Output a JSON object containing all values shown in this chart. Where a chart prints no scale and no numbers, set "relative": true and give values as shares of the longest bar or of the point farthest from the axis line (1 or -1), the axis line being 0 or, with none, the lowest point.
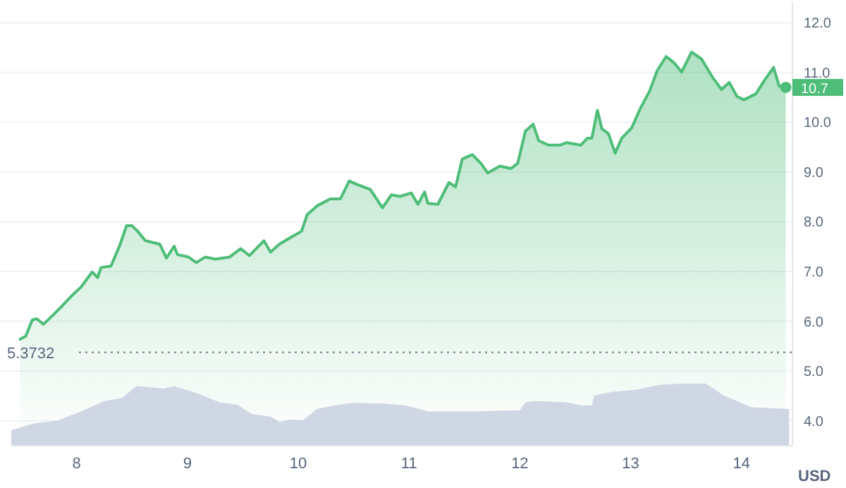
{
  "chart_data": [
    {
      "type": "area",
      "ylabel": "USD",
      "xlim": [
        7.41,
        14.46
      ],
      "xticks": [
        8,
        9,
        10,
        11,
        12,
        13,
        14
      ],
      "ylim": [
        3.5,
        12.4
      ],
      "yticks": [
        {
          "value": 4,
          "label": "4.0"
        },
        {
          "value": 5,
          "label": "5.0"
        },
        {
          "value": 6,
          "label": "6.0"
        },
        {
          "value": 7,
          "label": "7.0"
        },
        {
          "value": 8,
          "label": "8.0"
        },
        {
          "value": 9,
          "label": "9.0"
        },
        {
          "value": 10,
          "label": "10.0"
        },
        {
          "value": 11,
          "label": "11.0"
        },
        {
          "value": 12,
          "label": "12.0"
        }
      ],
      "grid": "y",
      "marker": "none",
      "ref_lines": [
        {
          "axis": "y",
          "value": 5.3732,
          "label": "5.3732",
          "color": "#8a919e",
          "line_style": "dotted"
        }
      ],
      "annotations": [
        {
          "text": "10.7",
          "x": 14.4,
          "y": 10.7
        }
      ],
      "series": [
        {
          "color": "#4dbd78",
          "x": [
            7.49,
            7.54,
            7.6,
            7.64,
            7.7,
            7.79,
            7.87,
            7.95,
            8.04,
            8.14,
            8.19,
            8.22,
            8.31,
            8.39,
            8.45,
            8.5,
            8.55,
            8.62,
            8.75,
            8.81,
            8.88,
            8.91,
            9.01,
            9.08,
            9.16,
            9.25,
            9.38,
            9.48,
            9.56,
            9.69,
            9.75,
            9.83,
            9.92,
            10.03,
            10.08,
            10.17,
            10.29,
            10.38,
            10.46,
            10.52,
            10.65,
            10.76,
            10.84,
            10.92,
            11.02,
            11.08,
            11.14,
            11.17,
            11.26,
            11.36,
            11.42,
            11.48,
            11.57,
            11.65,
            11.71,
            11.82,
            11.92,
            11.98,
            12.05,
            12.12,
            12.17,
            12.26,
            12.36,
            12.42,
            12.55,
            12.61,
            12.65,
            12.7,
            12.74,
            12.8,
            12.86,
            12.92,
            13.01,
            13.09,
            13.17,
            13.24,
            13.32,
            13.39,
            13.46,
            13.55,
            13.64,
            13.74,
            13.82,
            13.89,
            13.96,
            14.02,
            14.13,
            14.21,
            14.29,
            14.34,
            14.4
          ],
          "values": [
            5.64,
            5.7,
            6.03,
            6.05,
            5.94,
            6.13,
            6.31,
            6.5,
            6.69,
            6.99,
            6.88,
            7.08,
            7.11,
            7.53,
            7.92,
            7.92,
            7.81,
            7.62,
            7.55,
            7.27,
            7.51,
            7.34,
            7.29,
            7.18,
            7.29,
            7.25,
            7.29,
            7.46,
            7.32,
            7.62,
            7.39,
            7.55,
            7.67,
            7.81,
            8.14,
            8.32,
            8.46,
            8.46,
            8.82,
            8.76,
            8.65,
            8.28,
            8.54,
            8.51,
            8.58,
            8.35,
            8.6,
            8.37,
            8.35,
            8.79,
            8.7,
            9.26,
            9.35,
            9.17,
            8.98,
            9.12,
            9.07,
            9.17,
            9.82,
            9.96,
            9.63,
            9.54,
            9.54,
            9.59,
            9.54,
            9.68,
            9.68,
            10.24,
            9.87,
            9.77,
            9.38,
            9.68,
            9.89,
            10.29,
            10.62,
            11.04,
            11.32,
            11.2,
            11.01,
            11.41,
            11.27,
            10.9,
            10.66,
            10.8,
            10.52,
            10.45,
            10.57,
            10.85,
            11.1,
            10.73,
            10.7
          ]
        }
      ]
    },
    {
      "type": "area",
      "relative": true,
      "xlim": [
        7.41,
        14.46
      ],
      "series": [
        {
          "color": "#cfd6e4",
          "x": [
            7.41,
            7.62,
            7.82,
            8.04,
            8.25,
            8.41,
            8.54,
            8.79,
            8.88,
            9.08,
            9.29,
            9.45,
            9.58,
            9.75,
            9.83,
            9.92,
            10.04,
            10.17,
            10.33,
            10.5,
            10.76,
            10.96,
            11.08,
            11.17,
            11.58,
            12.0,
            12.05,
            12.13,
            12.42,
            12.55,
            12.65,
            12.67,
            12.84,
            13.05,
            13.26,
            13.46,
            13.68,
            13.84,
            14.09,
            14.43
          ],
          "values": [
            0.25,
            0.36,
            0.4,
            0.55,
            0.72,
            0.77,
            0.96,
            0.92,
            0.96,
            0.85,
            0.7,
            0.66,
            0.51,
            0.47,
            0.38,
            0.42,
            0.41,
            0.59,
            0.65,
            0.69,
            0.68,
            0.65,
            0.6,
            0.55,
            0.55,
            0.57,
            0.7,
            0.72,
            0.7,
            0.65,
            0.65,
            0.81,
            0.87,
            0.9,
            0.98,
            1,
            1,
            0.81,
            0.62,
            0.59
          ]
        }
      ]
    }
  ]
}
